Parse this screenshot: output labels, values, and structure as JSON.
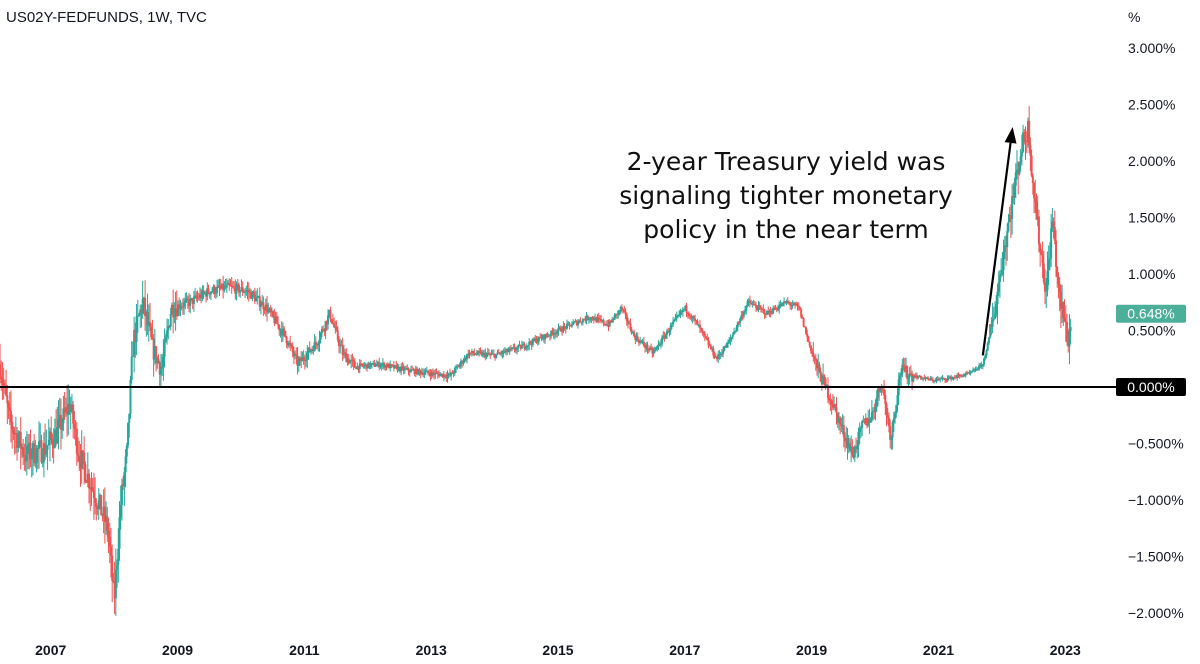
{
  "chart_data": {
    "type": "candlestick",
    "title": "US02Y-FEDFUNDS, 1W, TVC",
    "unit_label": "%",
    "x_range": [
      2006.2,
      2023.8
    ],
    "y_range": [
      -2.15,
      3.3
    ],
    "x_ticks": [
      {
        "label": "2007",
        "value": 2007
      },
      {
        "label": "2009",
        "value": 2009
      },
      {
        "label": "2011",
        "value": 2011
      },
      {
        "label": "2013",
        "value": 2013
      },
      {
        "label": "2015",
        "value": 2015
      },
      {
        "label": "2017",
        "value": 2017
      },
      {
        "label": "2019",
        "value": 2019
      },
      {
        "label": "2021",
        "value": 2021
      },
      {
        "label": "2023",
        "value": 2023
      }
    ],
    "y_ticks": [
      {
        "label": "3.000%",
        "value": 3.0
      },
      {
        "label": "2.500%",
        "value": 2.5
      },
      {
        "label": "2.000%",
        "value": 2.0
      },
      {
        "label": "1.500%",
        "value": 1.5
      },
      {
        "label": "1.000%",
        "value": 1.0
      },
      {
        "label": "0.500%",
        "value": 0.5
      },
      {
        "label": "−0.500%",
        "value": -0.5
      },
      {
        "label": "−1.000%",
        "value": -1.0
      },
      {
        "label": "−1.500%",
        "value": -1.5
      },
      {
        "label": "−2.000%",
        "value": -2.0
      }
    ],
    "zero_line": {
      "value": 0.0,
      "label": "0.000%"
    },
    "last_value": {
      "value": 0.648,
      "label": "0.648%"
    },
    "approx_path": [
      [
        2006.2,
        0.2
      ],
      [
        2006.35,
        -0.3
      ],
      [
        2006.6,
        -0.6
      ],
      [
        2006.9,
        -0.55
      ],
      [
        2007.1,
        -0.4
      ],
      [
        2007.3,
        -0.15
      ],
      [
        2007.45,
        -0.6
      ],
      [
        2007.7,
        -0.95
      ],
      [
        2007.9,
        -1.25
      ],
      [
        2008.0,
        -1.9
      ],
      [
        2008.1,
        -1.05
      ],
      [
        2008.2,
        -0.6
      ],
      [
        2008.3,
        0.4
      ],
      [
        2008.45,
        0.75
      ],
      [
        2008.6,
        0.35
      ],
      [
        2008.75,
        0.15
      ],
      [
        2008.9,
        0.7
      ],
      [
        2009.2,
        0.75
      ],
      [
        2009.5,
        0.85
      ],
      [
        2009.8,
        0.88
      ],
      [
        2010.1,
        0.85
      ],
      [
        2010.4,
        0.7
      ],
      [
        2010.7,
        0.45
      ],
      [
        2010.9,
        0.2
      ],
      [
        2011.2,
        0.4
      ],
      [
        2011.4,
        0.65
      ],
      [
        2011.6,
        0.3
      ],
      [
        2011.8,
        0.18
      ],
      [
        2012.2,
        0.2
      ],
      [
        2012.6,
        0.15
      ],
      [
        2013.0,
        0.12
      ],
      [
        2013.3,
        0.1
      ],
      [
        2013.6,
        0.3
      ],
      [
        2014.0,
        0.28
      ],
      [
        2014.4,
        0.35
      ],
      [
        2014.8,
        0.45
      ],
      [
        2015.2,
        0.55
      ],
      [
        2015.5,
        0.62
      ],
      [
        2015.8,
        0.55
      ],
      [
        2016.0,
        0.7
      ],
      [
        2016.2,
        0.45
      ],
      [
        2016.5,
        0.3
      ],
      [
        2016.8,
        0.55
      ],
      [
        2017.0,
        0.7
      ],
      [
        2017.2,
        0.55
      ],
      [
        2017.5,
        0.25
      ],
      [
        2017.7,
        0.4
      ],
      [
        2018.0,
        0.75
      ],
      [
        2018.3,
        0.65
      ],
      [
        2018.6,
        0.75
      ],
      [
        2018.8,
        0.7
      ],
      [
        2018.95,
        0.4
      ],
      [
        2019.1,
        0.15
      ],
      [
        2019.3,
        -0.1
      ],
      [
        2019.5,
        -0.4
      ],
      [
        2019.65,
        -0.6
      ],
      [
        2019.8,
        -0.35
      ],
      [
        2019.95,
        -0.25
      ],
      [
        2020.1,
        0.05
      ],
      [
        2020.25,
        -0.45
      ],
      [
        2020.4,
        0.15
      ],
      [
        2020.6,
        0.1
      ],
      [
        2020.9,
        0.06
      ],
      [
        2021.2,
        0.08
      ],
      [
        2021.5,
        0.12
      ],
      [
        2021.7,
        0.2
      ],
      [
        2021.85,
        0.55
      ],
      [
        2022.0,
        1.1
      ],
      [
        2022.15,
        1.6
      ],
      [
        2022.3,
        2.1
      ],
      [
        2022.42,
        2.3
      ],
      [
        2022.5,
        1.75
      ],
      [
        2022.6,
        1.25
      ],
      [
        2022.7,
        0.85
      ],
      [
        2022.8,
        1.5
      ],
      [
        2022.9,
        0.8
      ],
      [
        2023.0,
        0.55
      ],
      [
        2023.05,
        0.4
      ],
      [
        2023.1,
        0.648
      ]
    ],
    "annotation": {
      "lines": [
        "2-year Treasury yield was",
        "signaling tighter monetary",
        "policy in the near term"
      ],
      "arrow_from": [
        2021.7,
        0.28
      ],
      "arrow_to": [
        2022.17,
        2.3
      ]
    },
    "colors": {
      "up": "#26a69a",
      "down": "#ef5350",
      "zero_line": "#000000",
      "last_tag": "#4caf9a",
      "zero_tag": "#000000"
    }
  }
}
